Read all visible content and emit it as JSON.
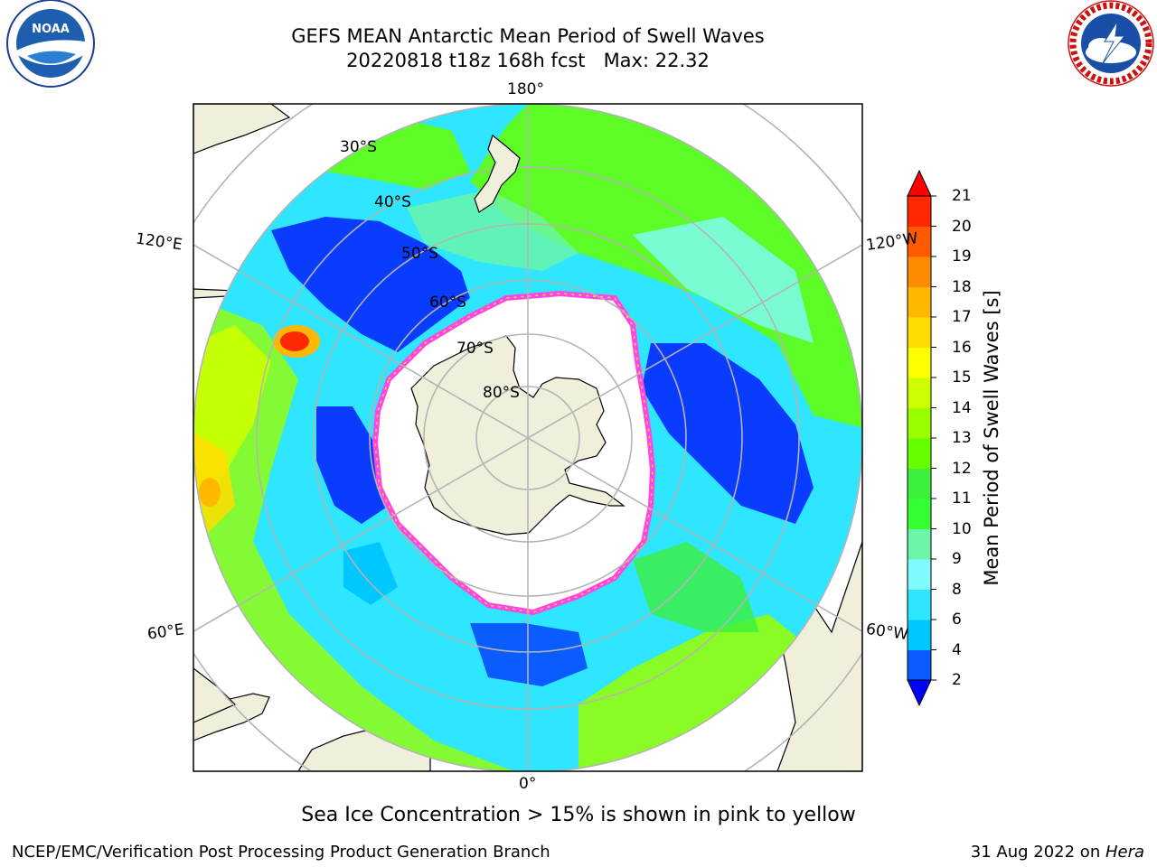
{
  "title": {
    "line1": "GEFS MEAN Antarctic Mean Period of Swell Waves",
    "line2": "20220818 t18z 168h fcst   Max: 22.32"
  },
  "logos": {
    "left": {
      "name": "NOAA",
      "ring_text": "NATIONAL OCEANIC AND ATMOSPHERIC ADMINISTRATION · U.S. DEPARTMENT OF COMMERCE"
    },
    "right": {
      "name": "NATIONAL WEATHER SERVICE"
    }
  },
  "map": {
    "projection": "south polar stereographic",
    "longitude_labels": [
      "180°",
      "120°E",
      "120°W",
      "60°E",
      "60°W",
      "0°"
    ],
    "latitude_labels": [
      "30°S",
      "40°S",
      "50°S",
      "60°S",
      "70°S",
      "80°S"
    ],
    "colors": {
      "land": "#efefdb",
      "graticule": "#b4b4b4",
      "ice": "#ffffff",
      "ice_edge": "#ff44ee"
    }
  },
  "colorbar": {
    "label": "Mean Period of Swell Waves [s]",
    "ticks": [
      "2",
      "4",
      "6",
      "8",
      "9",
      "10",
      "11",
      "12",
      "13",
      "14",
      "15",
      "16",
      "17",
      "18",
      "19",
      "20",
      "21"
    ],
    "colors": [
      "#0a5cff",
      "#00c8ff",
      "#2ee6ff",
      "#7ffbff",
      "#6cf5a8",
      "#33ff33",
      "#3cf03c",
      "#66ff00",
      "#99ff00",
      "#ccff00",
      "#ffff00",
      "#ffdd00",
      "#ffb800",
      "#ff8c00",
      "#ff5a00",
      "#ff2800"
    ],
    "under_color": "#0000ff",
    "over_color": "#ff0000"
  },
  "caption": "Sea Ice Concentration > 15% is shown in pink to yellow",
  "footer": {
    "left": "NCEP/EMC/Verification Post Processing Product Generation Branch",
    "right_date": "31 Aug 2022 on ",
    "right_host": "Hera"
  }
}
